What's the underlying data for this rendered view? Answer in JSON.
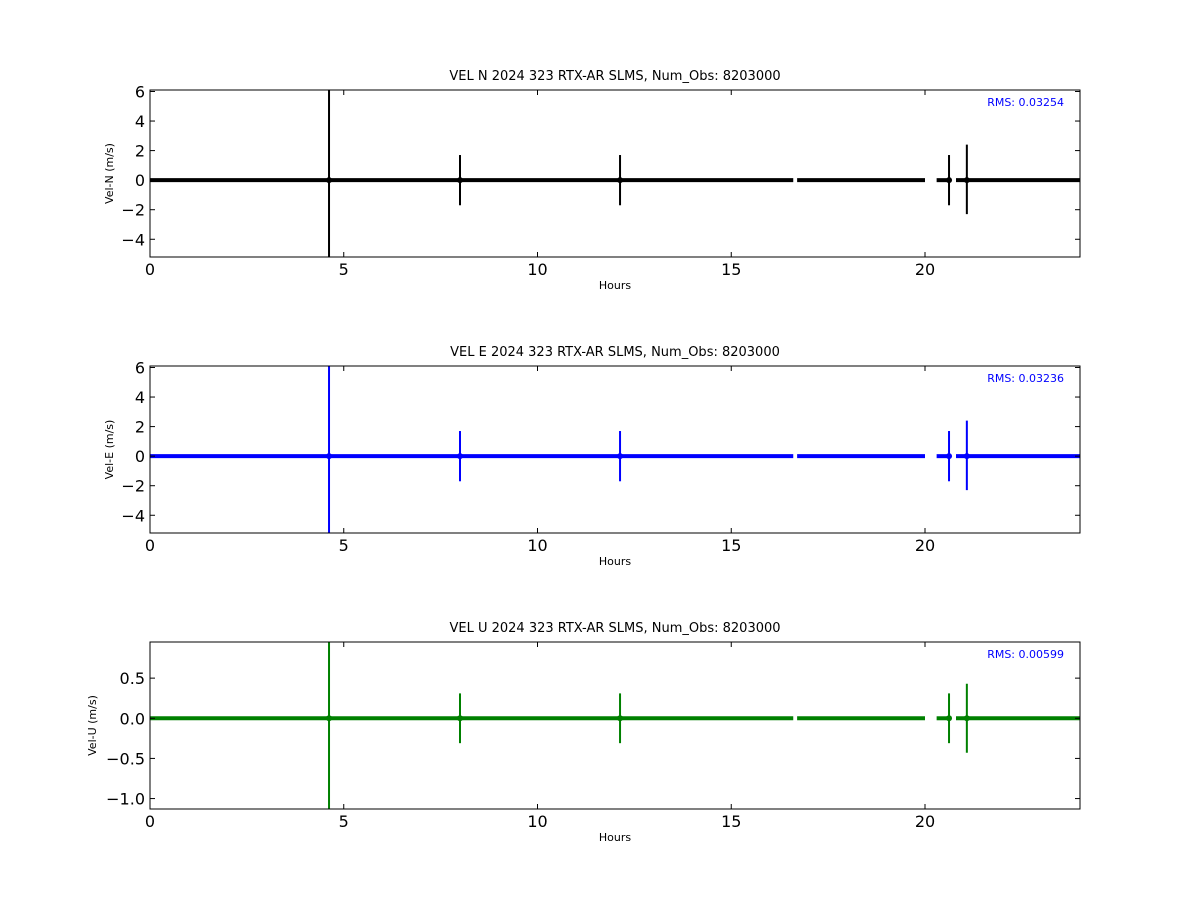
{
  "chart_data": [
    {
      "type": "scatter",
      "title": "VEL N 2024 323 RTX-AR  SLMS, Num_Obs: 8203000",
      "xlabel": "Hours",
      "ylabel": "Vel-N (m/s)",
      "xlim": [
        0,
        24
      ],
      "ylim": [
        -5.2,
        6.1
      ],
      "xticks": [
        0,
        5,
        10,
        15,
        20
      ],
      "yticks": [
        -4,
        -2,
        0,
        2,
        4,
        6
      ],
      "color": "#000000",
      "grid": false,
      "annotation": "RMS:  0.03254",
      "annotation_color": "#0000ff",
      "series": [
        {
          "baseline": 0.0,
          "segments": [
            [
              0,
              16.6
            ],
            [
              16.7,
              20.0
            ],
            [
              20.3,
              20.6
            ],
            [
              20.8,
              24
            ]
          ],
          "error_bars": [
            {
              "x": 4.62,
              "y": 0.0,
              "lo": -5.2,
              "hi": 6.1
            },
            {
              "x": 8.0,
              "y": 0.0,
              "lo": -1.7,
              "hi": 1.7
            },
            {
              "x": 12.13,
              "y": 0.0,
              "lo": -1.7,
              "hi": 1.7
            },
            {
              "x": 20.62,
              "y": 0.0,
              "lo": -1.7,
              "hi": 1.7
            },
            {
              "x": 21.08,
              "y": 0.0,
              "lo": -2.3,
              "hi": 2.4
            }
          ]
        }
      ]
    },
    {
      "type": "scatter",
      "title": "VEL E 2024 323 RTX-AR  SLMS, Num_Obs: 8203000",
      "xlabel": "Hours",
      "ylabel": "Vel-E (m/s)",
      "xlim": [
        0,
        24
      ],
      "ylim": [
        -5.2,
        6.1
      ],
      "xticks": [
        0,
        5,
        10,
        15,
        20
      ],
      "yticks": [
        -4,
        -2,
        0,
        2,
        4,
        6
      ],
      "color": "#0000ff",
      "grid": false,
      "annotation": "RMS:  0.03236",
      "annotation_color": "#0000ff",
      "series": [
        {
          "baseline": 0.0,
          "segments": [
            [
              0,
              16.6
            ],
            [
              16.7,
              20.0
            ],
            [
              20.3,
              20.6
            ],
            [
              20.8,
              24
            ]
          ],
          "error_bars": [
            {
              "x": 4.62,
              "y": 0.0,
              "lo": -5.2,
              "hi": 6.1
            },
            {
              "x": 8.0,
              "y": 0.0,
              "lo": -1.7,
              "hi": 1.7
            },
            {
              "x": 12.13,
              "y": 0.0,
              "lo": -1.7,
              "hi": 1.7
            },
            {
              "x": 20.62,
              "y": 0.0,
              "lo": -1.7,
              "hi": 1.7
            },
            {
              "x": 21.08,
              "y": 0.0,
              "lo": -2.3,
              "hi": 2.4
            }
          ]
        }
      ]
    },
    {
      "type": "scatter",
      "title": "VEL U 2024 323 RTX-AR  SLMS, Num_Obs: 8203000",
      "xlabel": "Hours",
      "ylabel": "Vel-U (m/s)",
      "xlim": [
        0,
        24
      ],
      "ylim": [
        -1.13,
        0.95
      ],
      "xticks": [
        0,
        5,
        10,
        15,
        20
      ],
      "yticks": [
        -1.0,
        -0.5,
        0.0,
        0.5
      ],
      "ytick_labels": [
        "−1.0",
        "−0.5",
        "0.0",
        "0.5"
      ],
      "color": "#008000",
      "grid": false,
      "annotation": "RMS:  0.00599",
      "annotation_color": "#0000ff",
      "series": [
        {
          "baseline": 0.0,
          "segments": [
            [
              0,
              16.6
            ],
            [
              16.7,
              20.0
            ],
            [
              20.3,
              20.6
            ],
            [
              20.8,
              24
            ]
          ],
          "error_bars": [
            {
              "x": 4.62,
              "y": 0.0,
              "lo": -1.13,
              "hi": 0.95
            },
            {
              "x": 8.0,
              "y": 0.0,
              "lo": -0.31,
              "hi": 0.31
            },
            {
              "x": 12.13,
              "y": 0.0,
              "lo": -0.31,
              "hi": 0.31
            },
            {
              "x": 20.62,
              "y": 0.0,
              "lo": -0.31,
              "hi": 0.31
            },
            {
              "x": 21.08,
              "y": 0.0,
              "lo": -0.43,
              "hi": 0.43
            }
          ]
        }
      ]
    }
  ]
}
